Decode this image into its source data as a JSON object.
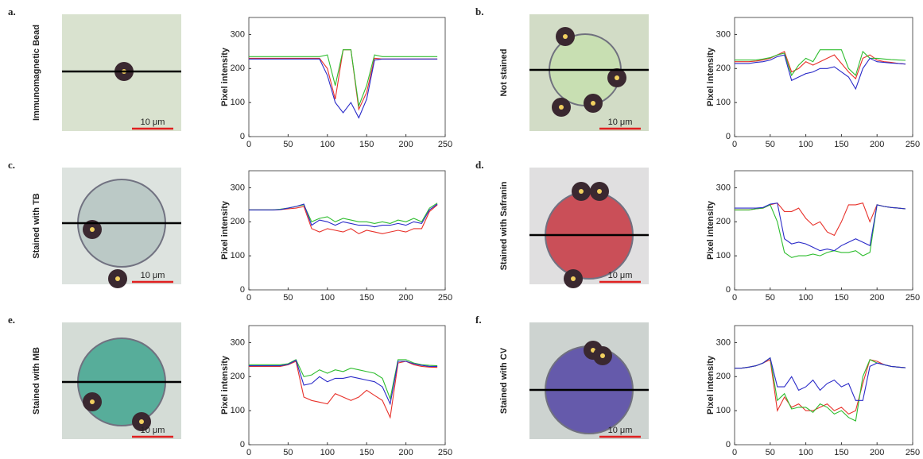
{
  "chart_data": [
    {
      "type": "line",
      "panel": "a.",
      "image_label": "Immunomagnetic Bead",
      "scale_bar": "10 μm",
      "ylabel": "Pixel intensity",
      "x": [
        0,
        10,
        20,
        30,
        40,
        50,
        60,
        70,
        80,
        90,
        100,
        110,
        120,
        130,
        140,
        150,
        160,
        170,
        180,
        190,
        200,
        210,
        220,
        230,
        240
      ],
      "xlim": [
        0,
        250
      ],
      "ylim": [
        0,
        350
      ],
      "xticks": [
        0,
        50,
        100,
        150,
        200,
        250
      ],
      "yticks": [
        0,
        100,
        200,
        300
      ],
      "series": [
        {
          "color": "#e8312a",
          "values": [
            230,
            230,
            230,
            230,
            230,
            230,
            230,
            230,
            230,
            230,
            200,
            110,
            255,
            255,
            80,
            130,
            230,
            228,
            228,
            228,
            228,
            228,
            228,
            228,
            228
          ]
        },
        {
          "color": "#2ebd2e",
          "values": [
            235,
            235,
            235,
            235,
            235,
            235,
            235,
            235,
            235,
            235,
            240,
            150,
            255,
            255,
            90,
            150,
            240,
            235,
            235,
            235,
            235,
            235,
            235,
            235,
            235
          ]
        },
        {
          "color": "#2a2ac8",
          "values": [
            228,
            228,
            228,
            228,
            228,
            228,
            228,
            228,
            228,
            228,
            180,
            100,
            70,
            100,
            55,
            110,
            225,
            228,
            228,
            228,
            228,
            228,
            228,
            228,
            228
          ]
        }
      ]
    },
    {
      "type": "line",
      "panel": "b.",
      "image_label": "Not stained",
      "scale_bar": "10 μm",
      "ylabel": "Pixel intensity",
      "x": [
        0,
        10,
        20,
        30,
        40,
        50,
        60,
        70,
        80,
        90,
        100,
        110,
        120,
        130,
        140,
        150,
        160,
        170,
        180,
        190,
        200,
        210,
        220,
        230,
        240
      ],
      "xlim": [
        0,
        250
      ],
      "ylim": [
        0,
        350
      ],
      "xticks": [
        0,
        50,
        100,
        150,
        200,
        250
      ],
      "yticks": [
        0,
        100,
        200,
        300
      ],
      "series": [
        {
          "color": "#e8312a",
          "values": [
            220,
            220,
            220,
            222,
            225,
            230,
            240,
            250,
            190,
            200,
            220,
            210,
            220,
            230,
            240,
            215,
            190,
            170,
            230,
            240,
            225,
            220,
            218,
            215,
            213
          ]
        },
        {
          "color": "#2ebd2e",
          "values": [
            225,
            225,
            225,
            225,
            228,
            232,
            240,
            245,
            180,
            210,
            230,
            220,
            255,
            255,
            255,
            255,
            200,
            180,
            250,
            230,
            230,
            228,
            226,
            225,
            224
          ]
        },
        {
          "color": "#2a2ac8",
          "values": [
            215,
            215,
            215,
            218,
            220,
            225,
            235,
            240,
            165,
            175,
            185,
            190,
            200,
            200,
            205,
            190,
            175,
            140,
            200,
            230,
            220,
            218,
            216,
            215,
            213
          ]
        }
      ]
    },
    {
      "type": "line",
      "panel": "c.",
      "image_label": "Stained with TB",
      "scale_bar": "10 μm",
      "ylabel": "Pixel intensity",
      "x": [
        0,
        10,
        20,
        30,
        40,
        50,
        60,
        70,
        80,
        90,
        100,
        110,
        120,
        130,
        140,
        150,
        160,
        170,
        180,
        190,
        200,
        210,
        220,
        230,
        240
      ],
      "xlim": [
        0,
        250
      ],
      "ylim": [
        0,
        350
      ],
      "xticks": [
        0,
        50,
        100,
        150,
        200,
        250
      ],
      "yticks": [
        0,
        100,
        200,
        300
      ],
      "series": [
        {
          "color": "#e8312a",
          "values": [
            235,
            235,
            235,
            235,
            236,
            238,
            240,
            245,
            180,
            170,
            180,
            175,
            170,
            180,
            165,
            175,
            170,
            165,
            170,
            175,
            170,
            180,
            180,
            230,
            250
          ]
        },
        {
          "color": "#2ebd2e",
          "values": [
            235,
            235,
            235,
            235,
            237,
            240,
            245,
            250,
            200,
            210,
            215,
            200,
            210,
            205,
            200,
            200,
            195,
            200,
            195,
            205,
            200,
            210,
            200,
            240,
            255
          ]
        },
        {
          "color": "#2a2ac8",
          "values": [
            235,
            235,
            235,
            235,
            236,
            240,
            245,
            252,
            190,
            205,
            200,
            190,
            200,
            195,
            190,
            190,
            185,
            190,
            190,
            195,
            190,
            200,
            195,
            235,
            252
          ]
        }
      ]
    },
    {
      "type": "line",
      "panel": "d.",
      "image_label": "Stained with Safranin",
      "scale_bar": "10 μm",
      "ylabel": "Pixel intensity",
      "x": [
        0,
        10,
        20,
        30,
        40,
        50,
        60,
        70,
        80,
        90,
        100,
        110,
        120,
        130,
        140,
        150,
        160,
        170,
        180,
        190,
        200,
        210,
        220,
        230,
        240
      ],
      "xlim": [
        0,
        250
      ],
      "ylim": [
        0,
        350
      ],
      "xticks": [
        0,
        50,
        100,
        150,
        200,
        250
      ],
      "yticks": [
        0,
        100,
        200,
        300
      ],
      "series": [
        {
          "color": "#e8312a",
          "values": [
            235,
            235,
            235,
            238,
            240,
            250,
            255,
            230,
            230,
            240,
            210,
            190,
            200,
            170,
            160,
            200,
            250,
            250,
            255,
            200,
            250,
            245,
            242,
            240,
            238
          ]
        },
        {
          "color": "#2ebd2e",
          "values": [
            235,
            235,
            235,
            238,
            240,
            250,
            200,
            110,
            95,
            100,
            100,
            105,
            100,
            110,
            115,
            110,
            110,
            115,
            100,
            110,
            250,
            245,
            242,
            240,
            238
          ]
        },
        {
          "color": "#2a2ac8",
          "values": [
            240,
            240,
            240,
            240,
            242,
            252,
            255,
            150,
            135,
            140,
            135,
            125,
            115,
            120,
            115,
            130,
            140,
            150,
            140,
            130,
            250,
            245,
            242,
            240,
            238
          ]
        }
      ]
    },
    {
      "type": "line",
      "panel": "e.",
      "image_label": "Stained with MB",
      "scale_bar": "10 μm",
      "ylabel": "Pixel intensity",
      "x": [
        0,
        10,
        20,
        30,
        40,
        50,
        60,
        70,
        80,
        90,
        100,
        110,
        120,
        130,
        140,
        150,
        160,
        170,
        180,
        190,
        200,
        210,
        220,
        230,
        240
      ],
      "xlim": [
        0,
        250
      ],
      "ylim": [
        0,
        350
      ],
      "xticks": [
        0,
        50,
        100,
        150,
        200,
        250
      ],
      "yticks": [
        0,
        100,
        200,
        300
      ],
      "series": [
        {
          "color": "#e8312a",
          "values": [
            230,
            230,
            230,
            230,
            230,
            235,
            245,
            140,
            130,
            125,
            120,
            150,
            140,
            130,
            140,
            160,
            145,
            130,
            80,
            240,
            245,
            235,
            230,
            228,
            227
          ]
        },
        {
          "color": "#2ebd2e",
          "values": [
            235,
            235,
            235,
            235,
            235,
            238,
            250,
            200,
            205,
            220,
            210,
            220,
            215,
            225,
            220,
            215,
            210,
            195,
            135,
            250,
            250,
            240,
            235,
            233,
            232
          ]
        },
        {
          "color": "#2a2ac8",
          "values": [
            232,
            232,
            232,
            232,
            232,
            236,
            248,
            175,
            180,
            200,
            185,
            195,
            195,
            200,
            195,
            190,
            185,
            170,
            120,
            245,
            245,
            238,
            233,
            230,
            230
          ]
        }
      ]
    },
    {
      "type": "line",
      "panel": "f.",
      "image_label": "Stained with CV",
      "scale_bar": "10 μm",
      "ylabel": "Pixel intensity",
      "x": [
        0,
        10,
        20,
        30,
        40,
        50,
        60,
        70,
        80,
        90,
        100,
        110,
        120,
        130,
        140,
        150,
        160,
        170,
        180,
        190,
        200,
        210,
        220,
        230,
        240
      ],
      "xlim": [
        0,
        250
      ],
      "ylim": [
        0,
        350
      ],
      "xticks": [
        0,
        50,
        100,
        150,
        200,
        250
      ],
      "yticks": [
        0,
        100,
        200,
        300
      ],
      "series": [
        {
          "color": "#e8312a",
          "values": [
            225,
            225,
            228,
            232,
            240,
            250,
            100,
            140,
            110,
            120,
            100,
            100,
            110,
            120,
            100,
            110,
            90,
            100,
            180,
            250,
            245,
            235,
            230,
            228,
            226
          ]
        },
        {
          "color": "#2ebd2e",
          "values": [
            225,
            225,
            228,
            232,
            240,
            255,
            130,
            150,
            105,
            110,
            110,
            95,
            120,
            110,
            90,
            100,
            80,
            70,
            200,
            250,
            240,
            235,
            230,
            228,
            226
          ]
        },
        {
          "color": "#2a2ac8",
          "values": [
            225,
            225,
            228,
            232,
            240,
            255,
            170,
            170,
            200,
            160,
            170,
            190,
            160,
            180,
            190,
            170,
            180,
            130,
            130,
            230,
            240,
            235,
            230,
            228,
            226
          ]
        }
      ]
    }
  ]
}
